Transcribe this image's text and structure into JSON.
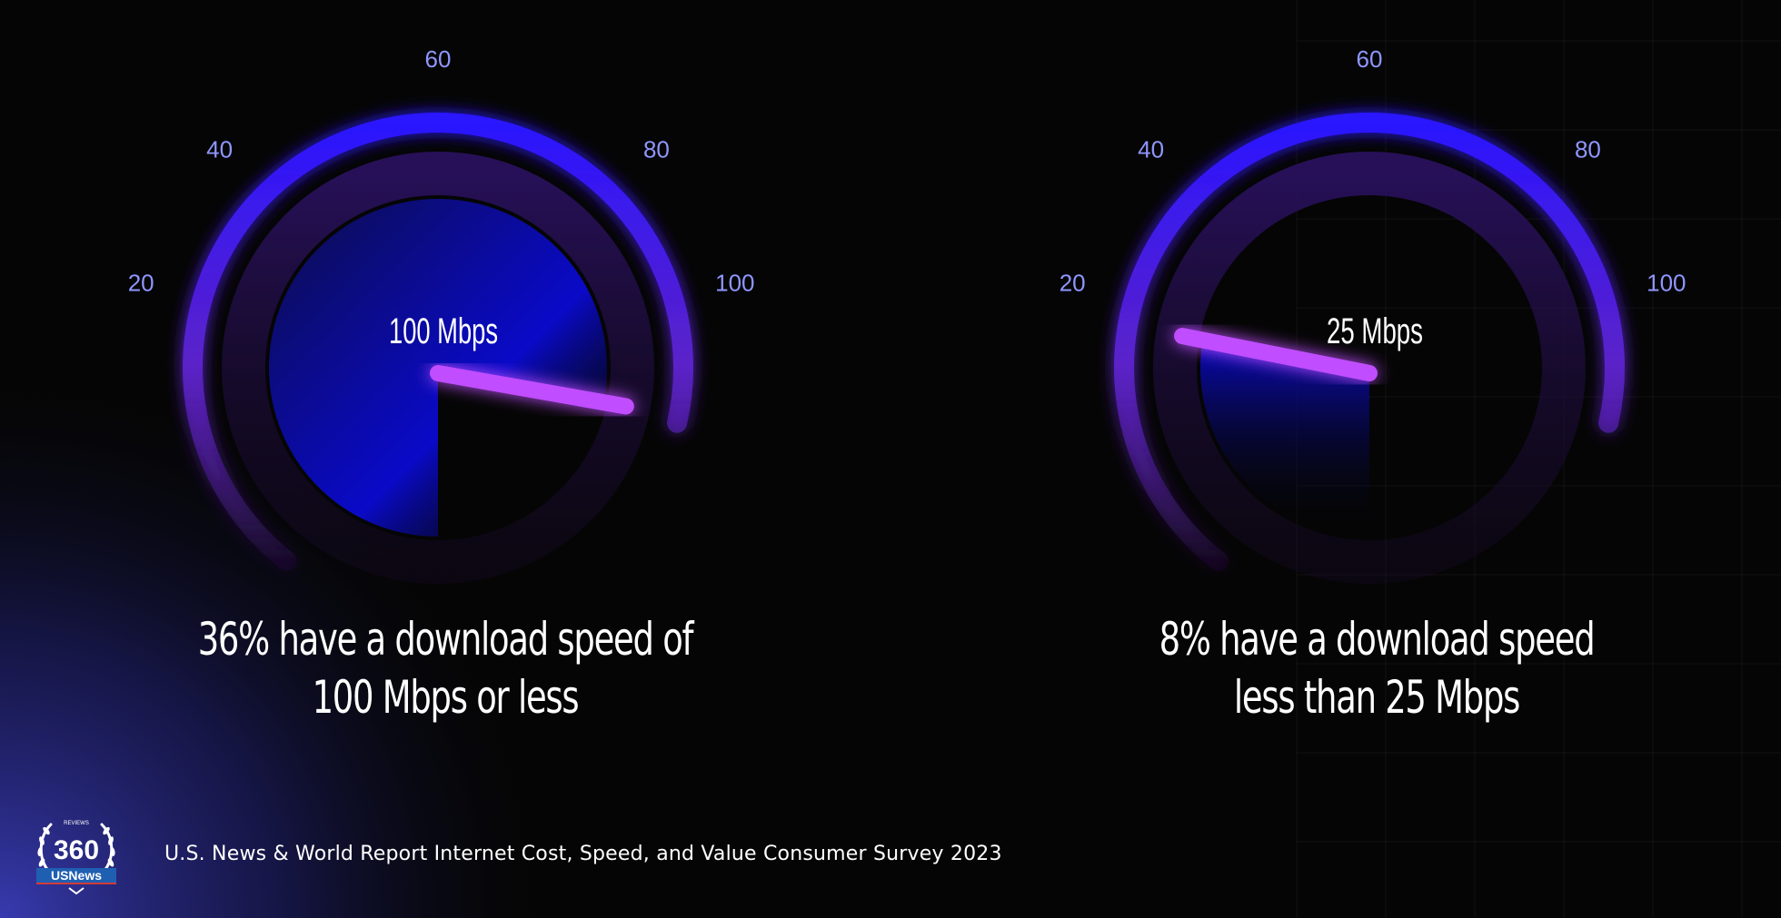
{
  "gauges": [
    {
      "reading_value": 100,
      "reading_label": "100 Mbps",
      "tick_labels": [
        "20",
        "40",
        "60",
        "80",
        "100"
      ],
      "caption_lines": [
        "36% have a download speed of",
        "100 Mbps or less"
      ]
    },
    {
      "reading_value": 25,
      "reading_label": "25 Mbps",
      "tick_labels": [
        "20",
        "40",
        "60",
        "80",
        "100"
      ],
      "caption_lines": [
        "8% have a download speed",
        "less than 25 Mbps"
      ]
    }
  ],
  "footer": {
    "logo_number": "360",
    "logo_top_text": "REVIEWS",
    "logo_brand": "USNews",
    "source": "U.S. News & World Report Internet Cost, Speed, and Value Consumer Survey 2023"
  },
  "colors": {
    "accent_blue": "#2a16ff",
    "accent_purple": "#7b2fd6",
    "needle": "#c04dff",
    "tick_label": "#8f96ff"
  }
}
